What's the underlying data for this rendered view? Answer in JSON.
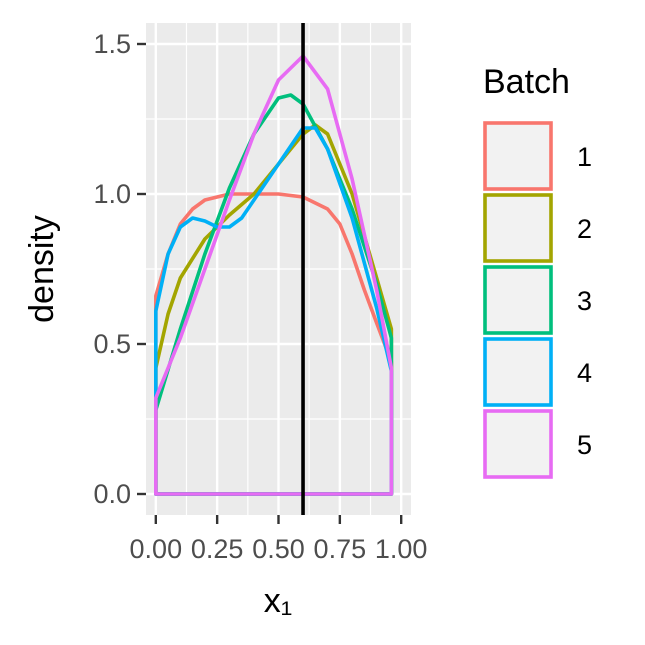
{
  "chart_data": {
    "type": "line",
    "subtype": "density",
    "title": "",
    "xlabel": "x₁",
    "ylabel": "density",
    "xlim": [
      -0.04,
      1.04
    ],
    "ylim": [
      -0.07,
      1.57
    ],
    "x_ticks": [
      0,
      0.25,
      0.5,
      0.75,
      1
    ],
    "x_tick_labels": [
      "0.00",
      "0.25",
      "0.50",
      "0.75",
      "1.00"
    ],
    "y_ticks": [
      0,
      0.5,
      1,
      1.5
    ],
    "y_tick_labels": [
      "0.0",
      "0.5",
      "1.0",
      "1.5"
    ],
    "grid": true,
    "background": "#ebebeb",
    "vline": {
      "x": 0.6,
      "color": "#000000"
    },
    "density_range": [
      0,
      0.96
    ],
    "legend": {
      "title": "Batch",
      "position": "right"
    },
    "series": [
      {
        "name": "1",
        "color": "#f8766d",
        "x": [
          0,
          0.05,
          0.1,
          0.15,
          0.2,
          0.3,
          0.4,
          0.5,
          0.6,
          0.7,
          0.75,
          0.8,
          0.85,
          0.9,
          0.96
        ],
        "y": [
          0.66,
          0.8,
          0.9,
          0.95,
          0.98,
          1.0,
          1.0,
          1.0,
          0.99,
          0.95,
          0.9,
          0.8,
          0.68,
          0.57,
          0.44
        ]
      },
      {
        "name": "2",
        "color": "#a3a500",
        "x": [
          0,
          0.05,
          0.1,
          0.2,
          0.3,
          0.4,
          0.5,
          0.6,
          0.65,
          0.7,
          0.8,
          0.9,
          0.96
        ],
        "y": [
          0.42,
          0.6,
          0.72,
          0.85,
          0.93,
          1.0,
          1.1,
          1.2,
          1.23,
          1.2,
          1.0,
          0.72,
          0.55
        ]
      },
      {
        "name": "3",
        "color": "#00bf7d",
        "x": [
          0,
          0.1,
          0.2,
          0.3,
          0.4,
          0.5,
          0.55,
          0.6,
          0.7,
          0.8,
          0.9,
          0.96
        ],
        "y": [
          0.28,
          0.55,
          0.8,
          1.02,
          1.2,
          1.32,
          1.33,
          1.3,
          1.15,
          0.95,
          0.7,
          0.52
        ]
      },
      {
        "name": "4",
        "color": "#00b0f6",
        "x": [
          0,
          0.05,
          0.1,
          0.15,
          0.2,
          0.25,
          0.3,
          0.35,
          0.4,
          0.5,
          0.6,
          0.65,
          0.7,
          0.8,
          0.9,
          0.96
        ],
        "y": [
          0.61,
          0.8,
          0.89,
          0.92,
          0.91,
          0.89,
          0.89,
          0.92,
          0.98,
          1.1,
          1.22,
          1.22,
          1.15,
          0.92,
          0.62,
          0.41
        ]
      },
      {
        "name": "5",
        "color": "#e76bf3",
        "x": [
          0,
          0.1,
          0.2,
          0.3,
          0.4,
          0.5,
          0.6,
          0.7,
          0.8,
          0.9,
          0.96
        ],
        "y": [
          0.32,
          0.52,
          0.75,
          0.98,
          1.2,
          1.38,
          1.46,
          1.35,
          1.05,
          0.68,
          0.42
        ]
      }
    ]
  }
}
